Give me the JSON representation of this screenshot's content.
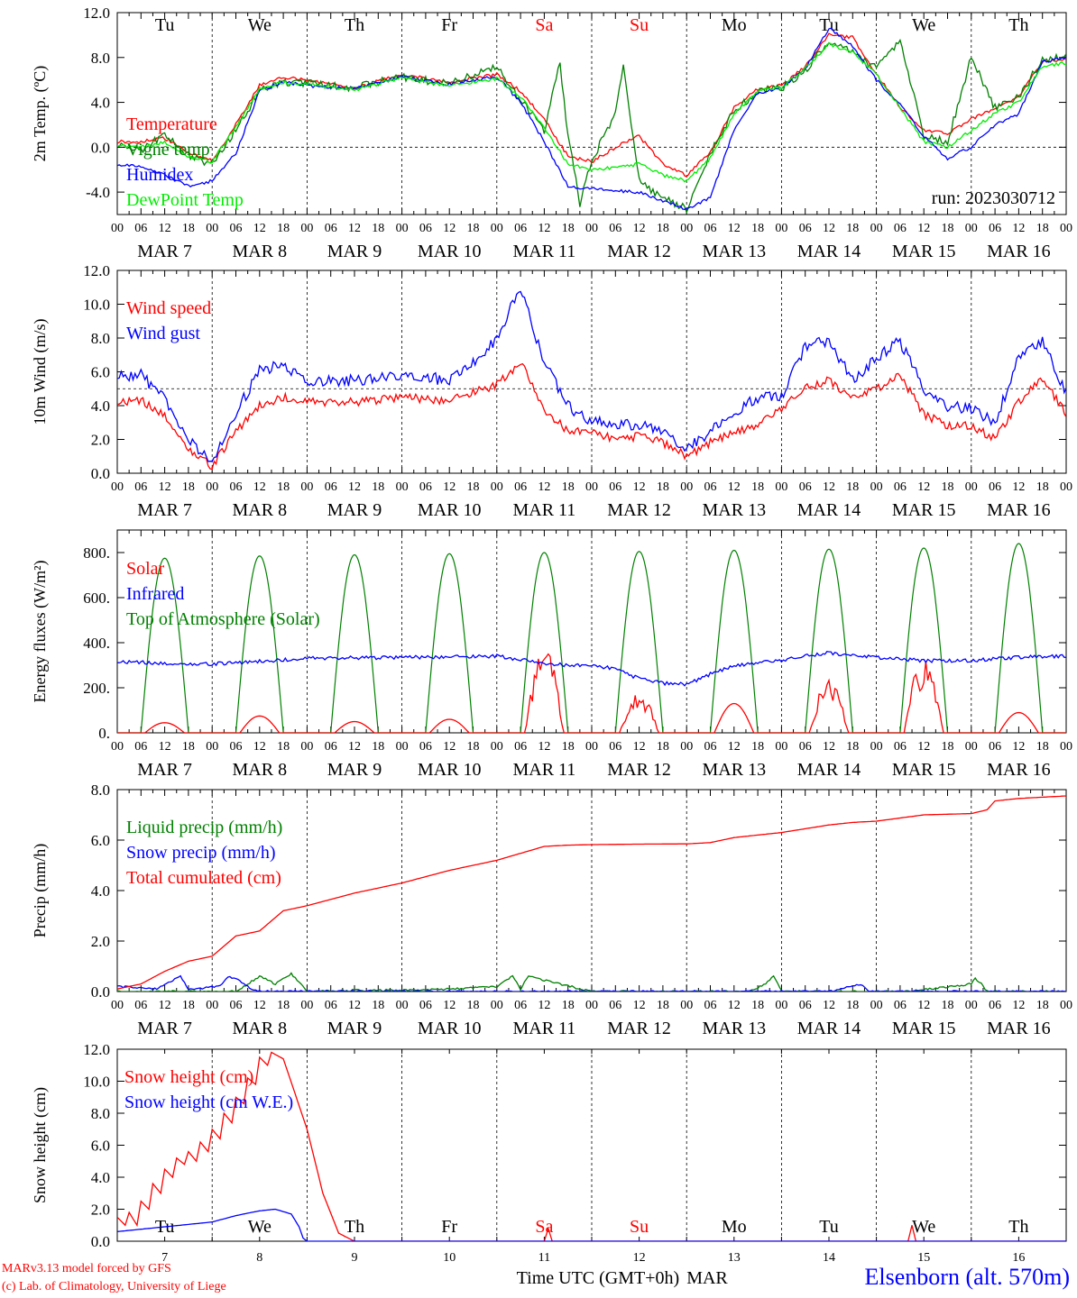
{
  "footer": {
    "model_line": "MARv3.13 model forced by GFS",
    "credit_line": "(c) Lab. of Climatology, University of Liege",
    "station": "Elsenborn (alt. 570m)",
    "xaxis_title": "Time UTC (GMT+0h)",
    "month": "MAR"
  },
  "weekdays": [
    "Tu",
    "We",
    "Th",
    "Fr",
    "Sa",
    "Su",
    "Mo",
    "Tu",
    "We",
    "Th"
  ],
  "weekend_days": [
    "Sa",
    "Su"
  ],
  "date_labels": [
    "MAR  7",
    "MAR  8",
    "MAR  9",
    "MAR 10",
    "MAR 11",
    "MAR 12",
    "MAR 13",
    "MAR 14",
    "MAR 15",
    "MAR 16"
  ],
  "hour_ticks": [
    "00",
    "06",
    "12",
    "18"
  ],
  "day_numbers": [
    "7",
    "8",
    "9",
    "10",
    "11",
    "12",
    "13",
    "14",
    "15",
    "16"
  ],
  "colors": {
    "red": "#ff0000",
    "green": "#008000",
    "blue": "#0000ff",
    "lightgreen": "#00ee00",
    "grid": "#000000"
  },
  "chart_data": [
    {
      "type": "line",
      "ylabel": "2m Temp. (ºC)",
      "ylim": [
        -6,
        12
      ],
      "yticks": [
        "-4.0",
        "0.0",
        "4.0",
        "8.0",
        "12.0"
      ],
      "ytick_values": [
        -4,
        0,
        4,
        8,
        12
      ],
      "hline": 0,
      "annotation": "run: 2023030712",
      "x_unit": "hours since MAR 7 00 UTC",
      "xlim": [
        0,
        240
      ],
      "series": [
        {
          "name": "Temperature",
          "color": "red",
          "x": [
            0,
            6,
            12,
            18,
            24,
            30,
            36,
            42,
            48,
            60,
            72,
            84,
            96,
            102,
            108,
            114,
            120,
            126,
            132,
            138,
            144,
            150,
            156,
            162,
            168,
            174,
            180,
            186,
            192,
            198,
            204,
            210,
            216,
            222,
            228,
            234,
            240
          ],
          "y": [
            0.5,
            0.5,
            0.8,
            -0.5,
            -1.2,
            2,
            5.5,
            6.2,
            6,
            5.3,
            6.5,
            5.8,
            6.5,
            5,
            2.5,
            -0.8,
            -1.3,
            0,
            1,
            -1.5,
            -2.5,
            -0.5,
            3.5,
            5.2,
            5.5,
            7.2,
            10,
            9.8,
            6.5,
            3.6,
            1.5,
            1.2,
            2.5,
            3.5,
            4.5,
            7.6,
            7.8
          ]
        },
        {
          "name": "Vigne temp",
          "color": "green",
          "x": [
            0,
            6,
            12,
            18,
            24,
            30,
            36,
            42,
            48,
            60,
            72,
            84,
            96,
            102,
            108,
            112,
            114,
            117,
            120,
            126,
            128,
            132,
            138,
            144,
            150,
            156,
            162,
            168,
            174,
            180,
            186,
            192,
            198,
            204,
            210,
            216,
            222,
            228,
            234,
            240
          ],
          "y": [
            0.3,
            -0.3,
            1.2,
            -0.8,
            -1.5,
            1.5,
            5,
            5.8,
            5.7,
            5.3,
            6.3,
            5.6,
            7.2,
            4.2,
            1.5,
            7.5,
            1,
            -5,
            -1.2,
            3,
            7.5,
            -3,
            -4.5,
            -5.5,
            -0.5,
            3.2,
            5,
            5.3,
            6.8,
            9.5,
            8.5,
            7,
            9.5,
            1,
            0.5,
            8,
            3.5,
            4.5,
            7.8,
            8
          ]
        },
        {
          "name": "Humidex",
          "color": "blue",
          "x": [
            0,
            6,
            12,
            18,
            24,
            30,
            36,
            42,
            48,
            60,
            72,
            84,
            96,
            102,
            108,
            114,
            120,
            126,
            132,
            138,
            144,
            150,
            156,
            162,
            168,
            174,
            180,
            186,
            192,
            198,
            204,
            210,
            216,
            222,
            228,
            234,
            240
          ],
          "y": [
            -1.5,
            -1.8,
            -2.5,
            -3.5,
            -3,
            -0.5,
            5,
            5.8,
            5.5,
            5.2,
            6.3,
            5.6,
            6.3,
            4,
            0.5,
            -3.5,
            -3.7,
            -3.9,
            -4,
            -4.8,
            -5.5,
            -4.5,
            1.5,
            4.8,
            5.3,
            7,
            10.6,
            9,
            6,
            3.8,
            1,
            -1,
            0,
            2,
            3,
            7.6,
            8
          ]
        },
        {
          "name": "DewPoint Temp",
          "color": "lightgreen",
          "x": [
            0,
            6,
            12,
            18,
            24,
            30,
            36,
            42,
            48,
            60,
            72,
            84,
            96,
            102,
            108,
            114,
            120,
            126,
            132,
            138,
            144,
            150,
            156,
            162,
            168,
            174,
            180,
            186,
            192,
            198,
            204,
            210,
            216,
            222,
            228,
            234,
            240
          ],
          "y": [
            0.2,
            0,
            0.5,
            -0.8,
            -1.3,
            1.8,
            5.2,
            5.8,
            5.6,
            5.1,
            6.2,
            5.5,
            6.1,
            4.5,
            1.8,
            -1.5,
            -2,
            -1.8,
            -1.5,
            -2.5,
            -3,
            -1,
            3,
            5,
            5.3,
            7,
            9.2,
            8.5,
            6.5,
            3.5,
            0.5,
            0,
            1.5,
            3,
            4,
            7.2,
            7.5
          ]
        }
      ]
    },
    {
      "type": "line",
      "ylabel": "10m Wind (m/s)",
      "ylim": [
        0,
        12
      ],
      "yticks": [
        "0.0",
        "2.0",
        "4.0",
        "6.0",
        "8.0",
        "10.0",
        "12.0"
      ],
      "ytick_values": [
        0,
        2,
        4,
        6,
        8,
        10,
        12
      ],
      "hline": 5,
      "x_unit": "hours since MAR 7 00 UTC",
      "xlim": [
        0,
        240
      ],
      "series": [
        {
          "name": "Wind speed",
          "color": "red",
          "x": [
            0,
            6,
            12,
            18,
            24,
            30,
            36,
            42,
            48,
            60,
            72,
            84,
            90,
            96,
            102,
            108,
            114,
            120,
            126,
            132,
            138,
            144,
            150,
            156,
            162,
            168,
            174,
            180,
            186,
            192,
            198,
            204,
            210,
            216,
            222,
            228,
            234,
            240
          ],
          "y": [
            4.2,
            4.3,
            3.5,
            1.5,
            0.4,
            2.5,
            4,
            4.5,
            4.2,
            4.2,
            4.5,
            4.3,
            4.8,
            5.2,
            6.6,
            3.8,
            2.5,
            2.5,
            2,
            2.2,
            1.8,
            1.0,
            1.8,
            2.5,
            2.8,
            3.8,
            5,
            5.5,
            4.5,
            5,
            5.8,
            3.5,
            2.8,
            2.8,
            2.0,
            4.2,
            5.6,
            3.5
          ]
        },
        {
          "name": "Wind gust",
          "color": "blue",
          "x": [
            0,
            6,
            12,
            18,
            24,
            30,
            36,
            42,
            48,
            60,
            72,
            84,
            90,
            96,
            102,
            108,
            114,
            120,
            126,
            132,
            138,
            144,
            150,
            156,
            162,
            168,
            174,
            180,
            186,
            192,
            198,
            204,
            210,
            216,
            222,
            228,
            234,
            240
          ],
          "y": [
            5.8,
            5.8,
            4.5,
            2,
            0.5,
            3.5,
            6.2,
            6.3,
            5.5,
            5.5,
            5.8,
            5.5,
            6.5,
            8,
            11,
            6.5,
            4,
            3,
            3,
            2.8,
            2.5,
            1.5,
            2.5,
            3.5,
            4.5,
            4.5,
            7.5,
            7.8,
            5.5,
            6.8,
            7.8,
            5,
            4,
            3.8,
            3,
            6.8,
            7.8,
            4.8
          ]
        }
      ]
    },
    {
      "type": "line",
      "ylabel": "Energy fluxes (W/m²)",
      "ylim": [
        0,
        900
      ],
      "yticks": [
        "0.",
        "200.",
        "400.",
        "600.",
        "800."
      ],
      "ytick_values": [
        0,
        200,
        400,
        600,
        800
      ],
      "x_unit": "hours since MAR 7 00 UTC",
      "xlim": [
        0,
        240
      ],
      "toa_peaks": [
        775,
        785,
        790,
        795,
        800,
        805,
        810,
        815,
        820,
        840
      ],
      "solar_peaks": [
        45,
        75,
        50,
        60,
        400,
        190,
        130,
        250,
        350,
        90
      ],
      "series": [
        {
          "name": "Solar",
          "color": "red"
        },
        {
          "name": "Infrared",
          "color": "blue",
          "x": [
            0,
            24,
            48,
            72,
            96,
            108,
            114,
            120,
            126,
            132,
            138,
            144,
            150,
            156,
            168,
            174,
            180,
            192,
            204,
            216,
            228,
            240
          ],
          "y": [
            315,
            305,
            330,
            335,
            340,
            310,
            300,
            300,
            285,
            240,
            220,
            215,
            260,
            300,
            320,
            340,
            355,
            335,
            320,
            320,
            335,
            340
          ]
        },
        {
          "name": "Top of Atmosphere (Solar)",
          "color": "green"
        }
      ]
    },
    {
      "type": "line",
      "ylabel": "Precip (mm/h)",
      "ylim": [
        0,
        8
      ],
      "yticks": [
        "0.0",
        "2.0",
        "4.0",
        "6.0",
        "8.0"
      ],
      "ytick_values": [
        0,
        2,
        4,
        6,
        8
      ],
      "x_unit": "hours since MAR 7 00 UTC",
      "xlim": [
        0,
        240
      ],
      "series": [
        {
          "name": "Liquid precip (mm/h)",
          "color": "green",
          "x": [
            0,
            30,
            36,
            40,
            44,
            48,
            60,
            72,
            84,
            96,
            100,
            102,
            104,
            120,
            144,
            160,
            164,
            166,
            168,
            200,
            216,
            217,
            218,
            219,
            220,
            240
          ],
          "y": [
            0,
            0,
            0.6,
            0.3,
            0.7,
            0,
            0.05,
            0.05,
            0.1,
            0.2,
            0.6,
            0.1,
            0.6,
            0,
            0,
            0,
            0.3,
            0.6,
            0,
            0,
            0.3,
            0.5,
            0.4,
            0.2,
            0,
            0
          ]
        },
        {
          "name": "Snow precip (mm/h)",
          "color": "blue",
          "x": [
            0,
            10,
            16,
            18,
            20,
            24,
            26,
            28,
            30,
            34,
            36,
            40,
            48,
            120,
            180,
            186,
            188,
            190,
            200,
            240
          ],
          "y": [
            0.2,
            0.1,
            0.6,
            0.1,
            0.1,
            0.2,
            0.2,
            0.6,
            0.5,
            0.1,
            0,
            0,
            0,
            0,
            0,
            0.2,
            0.3,
            0,
            0,
            0
          ]
        },
        {
          "name": "Total cumulated (cm)",
          "color": "red",
          "x": [
            0,
            6,
            12,
            18,
            24,
            30,
            36,
            42,
            48,
            60,
            72,
            84,
            90,
            96,
            108,
            114,
            120,
            132,
            144,
            150,
            156,
            168,
            180,
            186,
            192,
            204,
            216,
            220,
            222,
            228,
            234,
            240
          ],
          "y": [
            0.1,
            0.3,
            0.8,
            1.2,
            1.4,
            2.2,
            2.4,
            3.2,
            3.4,
            3.9,
            4.3,
            4.8,
            5.0,
            5.2,
            5.75,
            5.8,
            5.82,
            5.84,
            5.85,
            5.9,
            6.1,
            6.3,
            6.6,
            6.7,
            6.75,
            7.0,
            7.05,
            7.2,
            7.55,
            7.65,
            7.7,
            7.75
          ]
        }
      ]
    },
    {
      "type": "line",
      "ylabel": "Snow height (cm)",
      "ylim": [
        0,
        12
      ],
      "yticks": [
        "0.0",
        "2.0",
        "4.0",
        "6.0",
        "8.0",
        "10.0",
        "12.0"
      ],
      "ytick_values": [
        0,
        2,
        4,
        6,
        8,
        10,
        12
      ],
      "x_unit": "hours since MAR 7 00 UTC",
      "xlim": [
        0,
        240
      ],
      "series": [
        {
          "name": "Snow height (cm)",
          "color": "red",
          "x": [
            0,
            2,
            3,
            5,
            6,
            8,
            9,
            11,
            12,
            14,
            15,
            17,
            18,
            20,
            21,
            23,
            24,
            26,
            27,
            29,
            30,
            32,
            33,
            35,
            36,
            38,
            39,
            42,
            48,
            52,
            56,
            60,
            84,
            108,
            109,
            110,
            200,
            201,
            202,
            240
          ],
          "y": [
            1.5,
            1,
            1.8,
            1,
            2.5,
            2,
            3.6,
            3,
            4.5,
            4,
            5.2,
            4.8,
            5.6,
            5,
            6.2,
            5.6,
            7,
            6.4,
            8,
            7.4,
            9,
            8.6,
            10.2,
            9.8,
            11.5,
            11,
            11.8,
            11.4,
            7,
            3,
            0.5,
            0,
            0,
            0,
            0.8,
            0,
            0,
            1,
            0,
            0
          ]
        },
        {
          "name": "Snow height (cm W.E.)",
          "color": "blue",
          "x": [
            0,
            12,
            24,
            30,
            36,
            40,
            44,
            46,
            47,
            48,
            60,
            240
          ],
          "y": [
            0.6,
            0.9,
            1.2,
            1.6,
            1.9,
            2,
            1.7,
            0.9,
            0.2,
            0,
            0,
            0
          ]
        }
      ]
    }
  ]
}
